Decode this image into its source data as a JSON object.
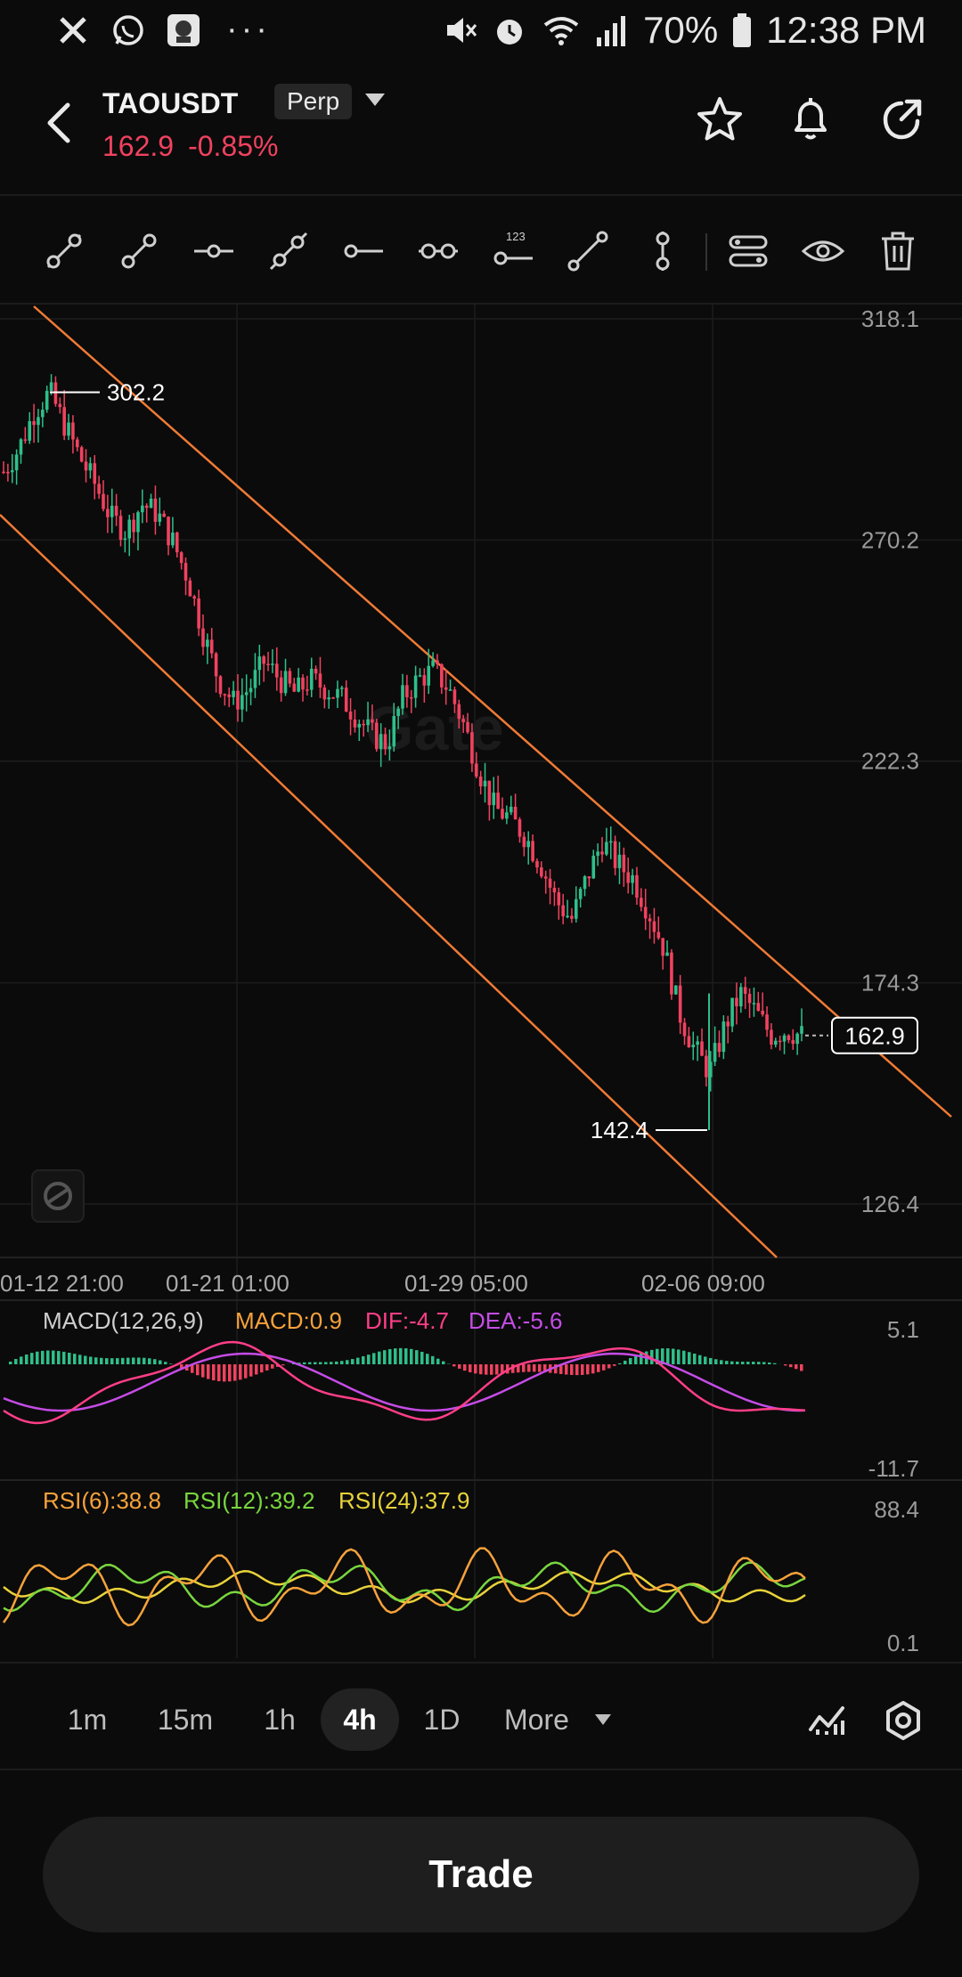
{
  "status_bar": {
    "time": "12:38 PM",
    "battery": "70%",
    "more_dots": "···"
  },
  "header": {
    "symbol": "TAOUSDT",
    "contract_type": "Perp",
    "price": "162.9",
    "change": "-0.85%"
  },
  "chart": {
    "watermark": "Gate",
    "price_axis": [
      "318.1",
      "270.2",
      "222.3",
      "174.3",
      "126.4"
    ],
    "time_axis": [
      "01-12 21:00",
      "01-21 01:00",
      "01-29 05:00",
      "02-06 09:00"
    ],
    "high_marker": "302.2",
    "low_marker": "142.4",
    "current_price_tag": "162.9"
  },
  "macd": {
    "title": "MACD(12,26,9)",
    "macd": "MACD:0.9",
    "dif": "DIF:-4.7",
    "dea": "DEA:-5.6",
    "axis_top": "5.1",
    "axis_bottom": "-11.7"
  },
  "rsi": {
    "rsi6": "RSI(6):38.8",
    "rsi12": "RSI(12):39.2",
    "rsi24": "RSI(24):37.9",
    "axis_top": "88.4",
    "axis_bottom": "0.1"
  },
  "timeframes": {
    "items": [
      "1m",
      "15m",
      "1h",
      "4h",
      "1D"
    ],
    "active": "4h",
    "more": "More"
  },
  "trade_button": "Trade",
  "colors": {
    "up": "#2fbf8a",
    "down": "#f0425f",
    "channel": "#f07a35",
    "dif": "#ff3e88",
    "dea": "#c54ce6",
    "rsi6": "#f7a23b",
    "rsi12": "#79d63f",
    "rsi24": "#e8d23a"
  },
  "chart_data": {
    "type": "candlestick",
    "symbol": "TAOUSDT",
    "interval": "4h",
    "ylim": [
      126.4,
      318.1
    ],
    "x_ticks": [
      "01-12 21:00",
      "01-21 01:00",
      "01-29 05:00",
      "02-06 09:00"
    ],
    "price_path": [
      285,
      290,
      298,
      302.2,
      295,
      288,
      282,
      275,
      272,
      278,
      276,
      270,
      262,
      250,
      240,
      235,
      238,
      244,
      240,
      237,
      240,
      238,
      236,
      232,
      228,
      226,
      236,
      240,
      242,
      238,
      230,
      220,
      212,
      210,
      206,
      200,
      192,
      188,
      197,
      205,
      200,
      197,
      190,
      182,
      168,
      160,
      155,
      165,
      172,
      168,
      163,
      164,
      162.9
    ],
    "high": 302.2,
    "low": 142.4,
    "last": 162.9
  }
}
